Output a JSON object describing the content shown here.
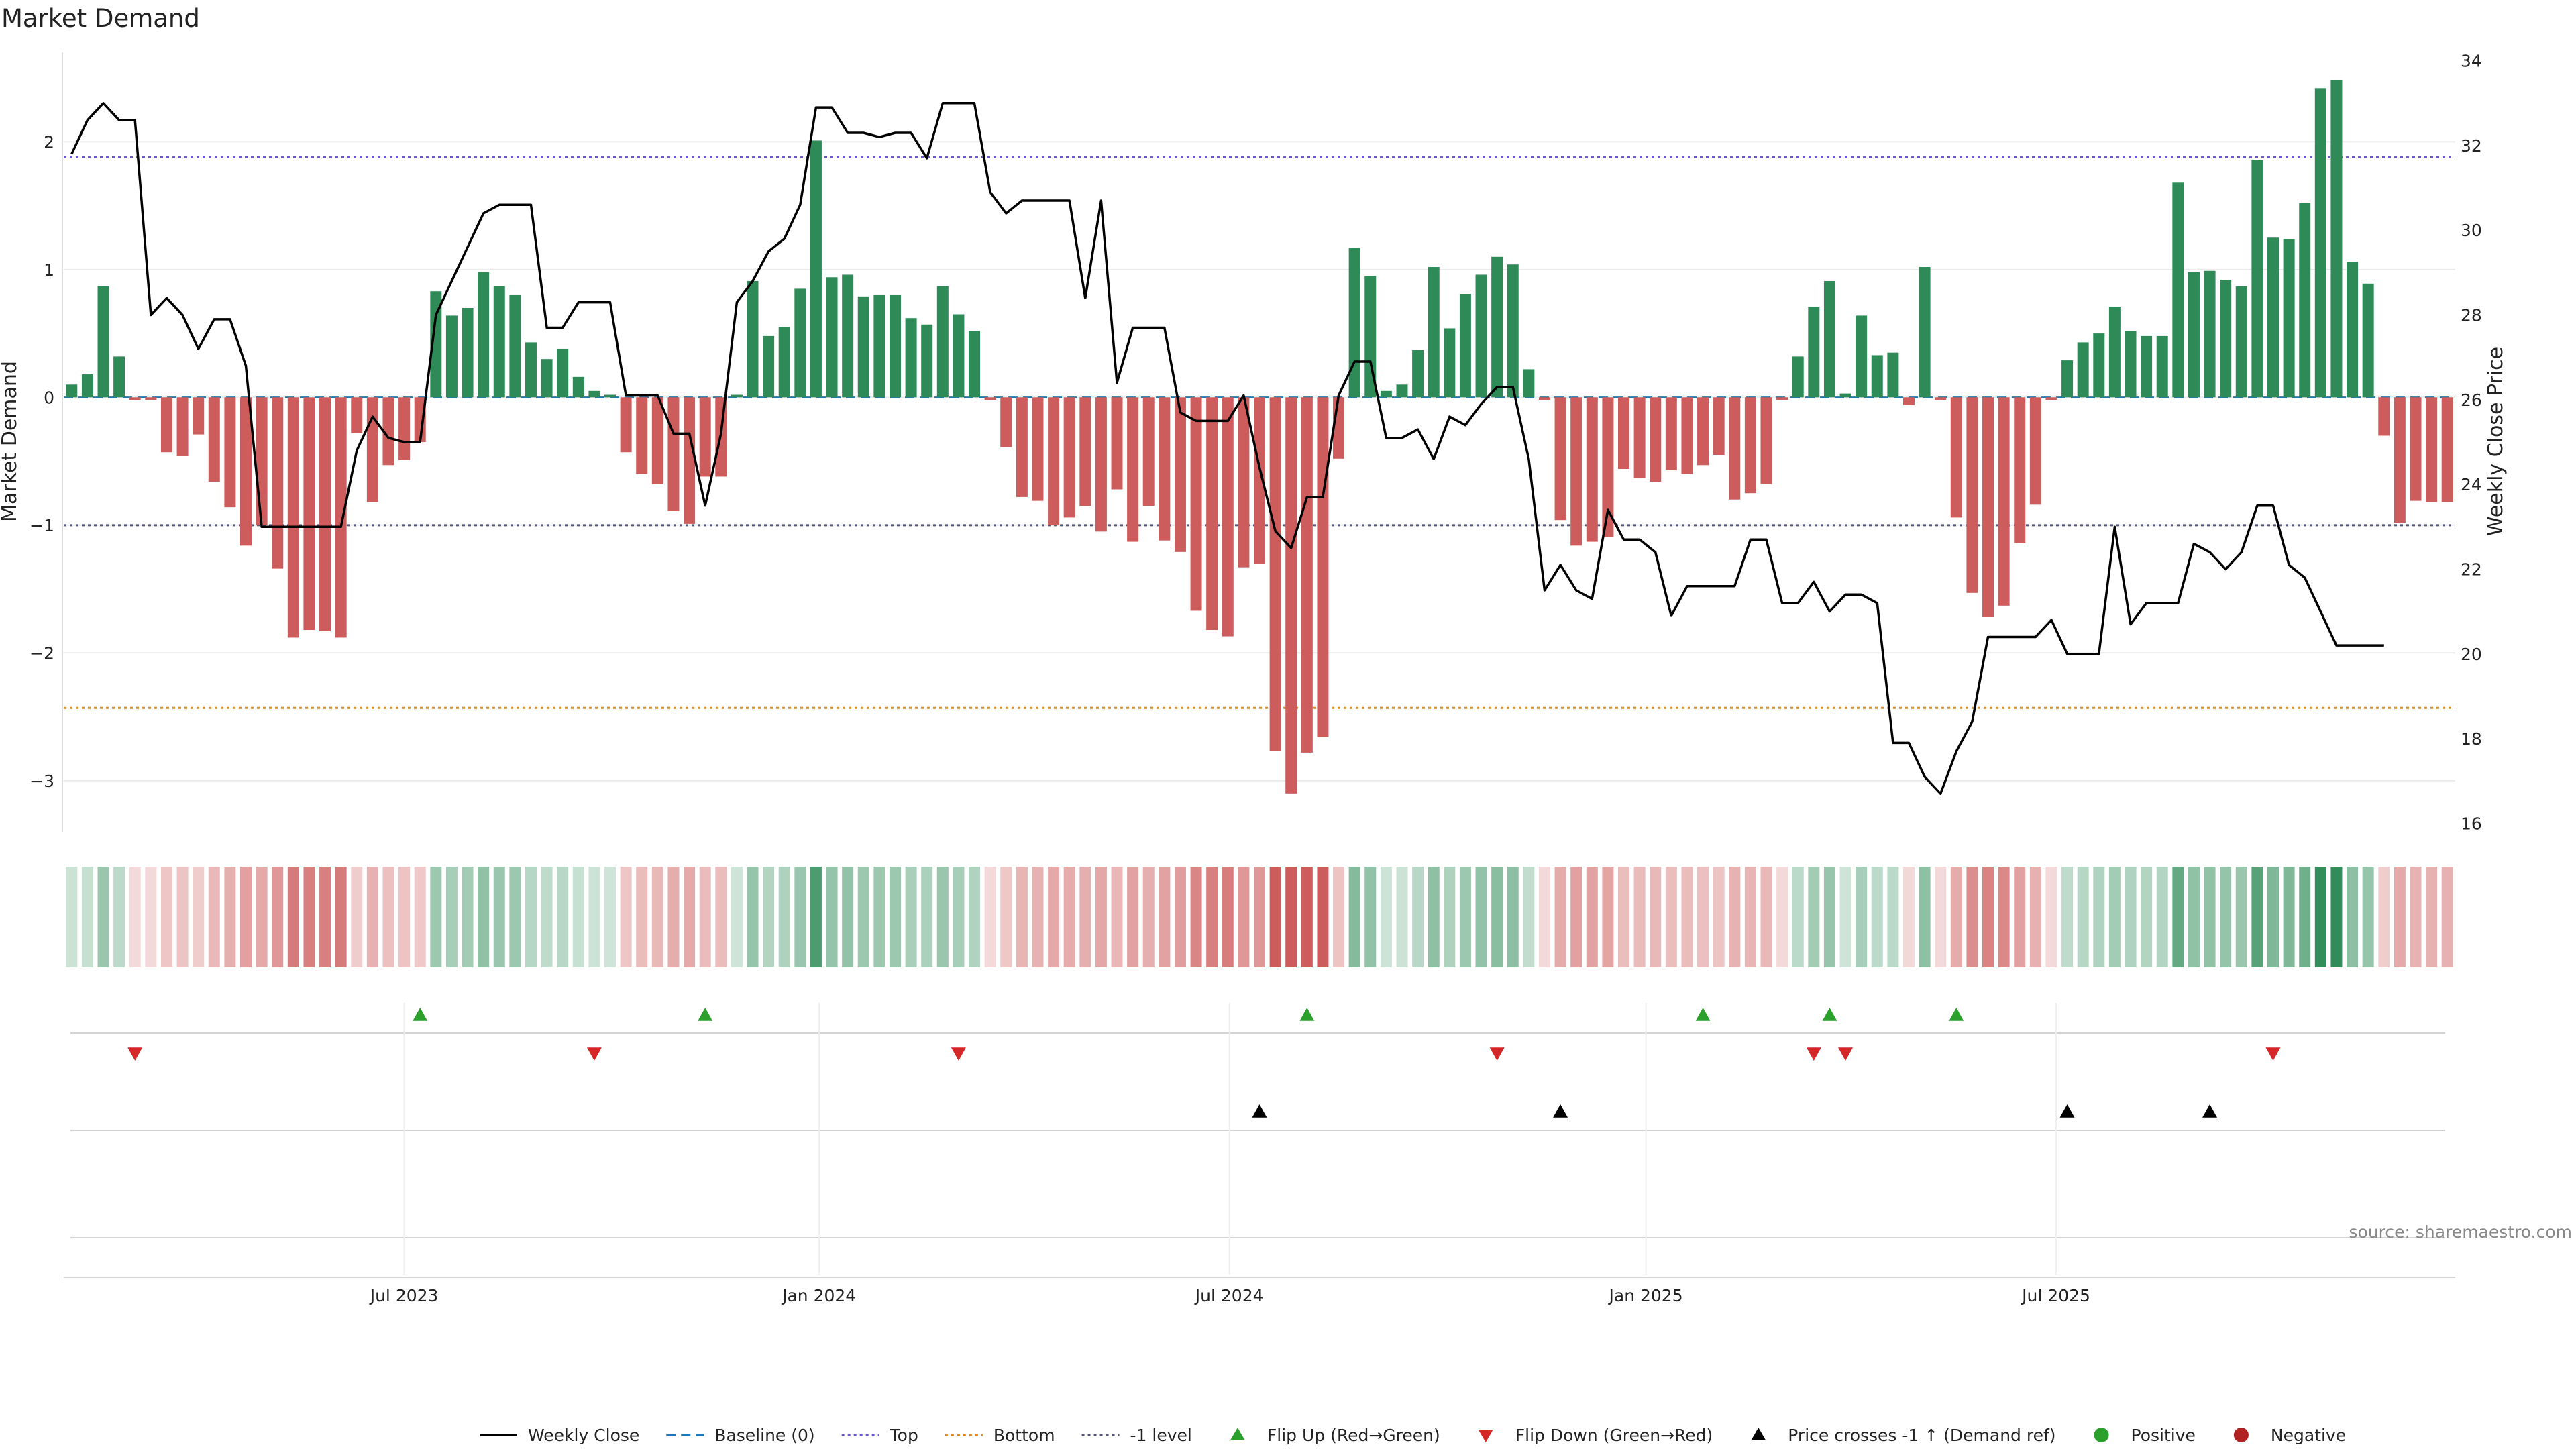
{
  "title": "Market Demand",
  "source_note": "source: sharemaestro.com",
  "colors": {
    "positive": "#2e8b57",
    "negative": "#cd5c5c",
    "price": "#000000",
    "top_line": "#6a5acd",
    "bottom_line": "#e08a1e",
    "minus1_line": "#555577",
    "baseline": "#1f77b4",
    "flip_up": "#2ca02c",
    "flip_down": "#d62728",
    "cross": "#000000",
    "grid": "#ebebeb"
  },
  "chart_data": {
    "type": "bar",
    "title": "Market Demand",
    "ylabel": "Market Demand",
    "y2label": "Weekly Close Price",
    "ylim": [
      -3.4,
      2.7
    ],
    "y2lim": [
      15.8,
      34.2
    ],
    "yticks": [
      -3,
      -2,
      -1,
      0,
      1,
      2
    ],
    "y2ticks": [
      16,
      18,
      20,
      22,
      24,
      26,
      28,
      30,
      32,
      34
    ],
    "ytick_labels": [
      "−3",
      "−2",
      "−1",
      "0",
      "1",
      "2"
    ],
    "y2tick_labels": [
      "16",
      "18",
      "20",
      "22",
      "24",
      "26",
      "28",
      "30",
      "32",
      "34"
    ],
    "reference_lines": {
      "top": 1.88,
      "bottom": -2.43,
      "minus1": -1.0,
      "baseline": 0
    },
    "x_tick_labels": [
      {
        "label": "Jul 2023",
        "week": 21.5
      },
      {
        "label": "Jan 2024",
        "week": 47.7
      },
      {
        "label": "Jul 2024",
        "week": 73.6
      },
      {
        "label": "Jan 2025",
        "week": 99.9
      },
      {
        "label": "Jul 2025",
        "week": 125.8
      }
    ],
    "demand": [
      0.1,
      0.18,
      0.87,
      0.32,
      -0.02,
      -0.02,
      -0.43,
      -0.46,
      -0.29,
      -0.66,
      -0.86,
      -1.16,
      -1.0,
      -1.34,
      -1.88,
      -1.82,
      -1.83,
      -1.88,
      -0.28,
      -0.82,
      -0.53,
      -0.49,
      -0.35,
      0.83,
      0.64,
      0.7,
      0.98,
      0.87,
      0.8,
      0.43,
      0.3,
      0.38,
      0.16,
      0.05,
      0.02,
      -0.43,
      -0.6,
      -0.68,
      -0.89,
      -0.99,
      -0.62,
      -0.62,
      0.02,
      0.91,
      0.48,
      0.55,
      0.85,
      2.01,
      0.94,
      0.96,
      0.79,
      0.8,
      0.8,
      0.62,
      0.57,
      0.87,
      0.65,
      0.52,
      -0.02,
      -0.39,
      -0.78,
      -0.81,
      -1.0,
      -0.94,
      -0.85,
      -1.05,
      -0.72,
      -1.13,
      -0.85,
      -1.12,
      -1.21,
      -1.67,
      -1.82,
      -1.87,
      -1.33,
      -1.3,
      -2.77,
      -3.1,
      -2.78,
      -2.66,
      -0.48,
      1.17,
      0.95,
      0.05,
      0.1,
      0.37,
      1.02,
      0.54,
      0.81,
      0.96,
      1.1,
      1.04,
      0.22,
      -0.02,
      -0.96,
      -1.16,
      -1.13,
      -1.09,
      -0.56,
      -0.63,
      -0.66,
      -0.57,
      -0.6,
      -0.53,
      -0.45,
      -0.8,
      -0.75,
      -0.68,
      -0.02,
      0.32,
      0.71,
      0.91,
      0.03,
      0.64,
      0.33,
      0.35,
      -0.06,
      1.02,
      -0.02,
      -0.94,
      -1.53,
      -1.72,
      -1.63,
      -1.14,
      -0.84,
      -0.02,
      0.29,
      0.43,
      0.5,
      0.71,
      0.52,
      0.48,
      0.48,
      1.68,
      0.98,
      0.99,
      0.92,
      0.87,
      1.86,
      1.25,
      1.24,
      1.52,
      2.42,
      2.48,
      1.06,
      0.89,
      -0.3,
      -0.98,
      -0.81,
      -0.82,
      -0.82
    ],
    "weekly_close": [
      31.8,
      32.6,
      33.0,
      32.6,
      32.6,
      28.0,
      28.4,
      28.0,
      27.2,
      27.9,
      27.9,
      26.8,
      23.0,
      23.0,
      23.0,
      23.0,
      23.0,
      23.0,
      24.8,
      25.6,
      25.1,
      25.0,
      25.0,
      28.0,
      28.8,
      29.6,
      30.4,
      30.6,
      30.6,
      30.6,
      27.7,
      27.7,
      28.3,
      28.3,
      28.3,
      26.1,
      26.1,
      26.1,
      25.2,
      25.2,
      23.5,
      25.2,
      28.3,
      28.8,
      29.5,
      29.8,
      30.6,
      32.9,
      32.9,
      32.3,
      32.3,
      32.2,
      32.3,
      32.3,
      31.7,
      33.0,
      33.0,
      33.0,
      30.9,
      30.4,
      30.7,
      30.7,
      30.7,
      30.7,
      28.4,
      30.7,
      26.4,
      27.7,
      27.7,
      27.7,
      25.7,
      25.5,
      25.5,
      25.5,
      26.1,
      24.4,
      22.9,
      22.5,
      23.7,
      23.7,
      26.1,
      26.9,
      26.9,
      25.1,
      25.1,
      25.3,
      24.6,
      25.6,
      25.4,
      25.9,
      26.3,
      26.3,
      24.6,
      21.5,
      22.1,
      21.5,
      21.3,
      23.4,
      22.7,
      22.7,
      22.4,
      20.9,
      21.6,
      21.6,
      21.6,
      21.6,
      22.7,
      22.7,
      21.2,
      21.2,
      21.7,
      21.0,
      21.4,
      21.4,
      21.2,
      17.9,
      17.9,
      17.1,
      16.7,
      17.7,
      18.4,
      20.4,
      20.4,
      20.4,
      20.4,
      20.8,
      20.0,
      20.0,
      20.0,
      23.0,
      20.7,
      21.2,
      21.2,
      21.2,
      22.6,
      22.4,
      22.0,
      22.4,
      23.5,
      23.5,
      22.1,
      21.8,
      21.0,
      20.2,
      20.2,
      20.2,
      20.2
    ],
    "flip_up_weeks": [
      22,
      40,
      78,
      103,
      111,
      119
    ],
    "flip_down_weeks": [
      4,
      33,
      56,
      90,
      110,
      112,
      139
    ],
    "price_cross_weeks": [
      75,
      94,
      126,
      135
    ]
  },
  "legend": [
    {
      "label": "Weekly Close",
      "kind": "line-solid",
      "color": "#000000"
    },
    {
      "label": "Baseline (0)",
      "kind": "line-dashed",
      "color": "#1f77b4"
    },
    {
      "label": "Top",
      "kind": "line-dotted",
      "color": "#6a5acd"
    },
    {
      "label": "Bottom",
      "kind": "line-dotted",
      "color": "#e08a1e"
    },
    {
      "label": "-1 level",
      "kind": "line-dotted",
      "color": "#555577"
    },
    {
      "label": "Flip Up (Red→Green)",
      "kind": "tri-up",
      "color": "#2ca02c"
    },
    {
      "label": "Flip Down (Green→Red)",
      "kind": "tri-down",
      "color": "#d62728"
    },
    {
      "label": "Price crosses -1 ↑ (Demand ref)",
      "kind": "tri-up",
      "color": "#000000"
    },
    {
      "label": "Positive",
      "kind": "dot",
      "color": "#2ca02c"
    },
    {
      "label": "Negative",
      "kind": "dot",
      "color": "#b22222"
    }
  ]
}
